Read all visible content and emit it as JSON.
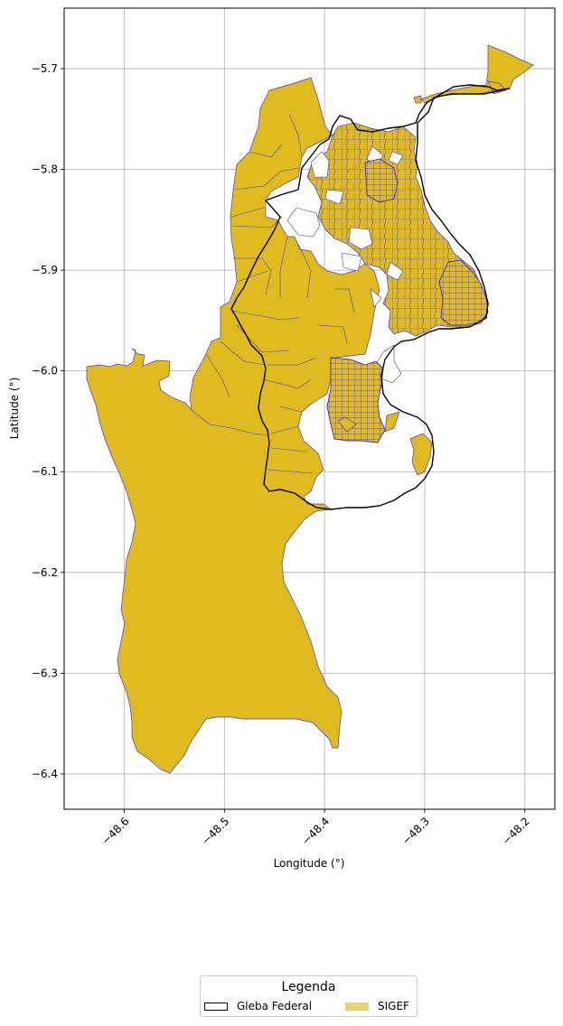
{
  "map": {
    "xlabel": "Longitude (°)",
    "ylabel": "Latitude (°)",
    "x_ticks": [
      "−48.6",
      "−48.5",
      "−48.4",
      "−48.3",
      "−48.2"
    ],
    "y_ticks": [
      "−5.7",
      "−5.8",
      "−5.9",
      "−6.0",
      "−6.1",
      "−6.2",
      "−6.3",
      "−6.4"
    ],
    "grid": true
  },
  "legend": {
    "title": "Legenda",
    "entries": [
      {
        "label": "Gleba Federal",
        "style": "outline",
        "color": "#000000"
      },
      {
        "label": "SIGEF",
        "style": "fill",
        "color": "#e6d37a"
      }
    ]
  },
  "colors": {
    "sigef_fill": "#dfbb1f",
    "sigef_edge": "#3b3bd6",
    "gleba_edge": "#000000",
    "grid": "#b0b0b0"
  },
  "chart_data": {
    "type": "map",
    "xlabel": "Longitude (°)",
    "ylabel": "Latitude (°)",
    "xlim": [
      -48.66,
      -48.17
    ],
    "ylim": [
      -6.435,
      -5.64
    ],
    "x_ticks": [
      -48.6,
      -48.5,
      -48.4,
      -48.3,
      -48.2
    ],
    "y_ticks": [
      -5.7,
      -5.8,
      -5.9,
      -6.0,
      -6.1,
      -6.2,
      -6.3,
      -6.4
    ],
    "grid": true,
    "layers": [
      {
        "name": "Gleba Federal",
        "style": "outline",
        "color": "#000000"
      },
      {
        "name": "SIGEF",
        "style": "fill",
        "color": "#dfbb1f",
        "edgecolor": "#3b3bd6"
      }
    ],
    "legend_title": "Legenda",
    "legend_position": "bottom-center"
  }
}
